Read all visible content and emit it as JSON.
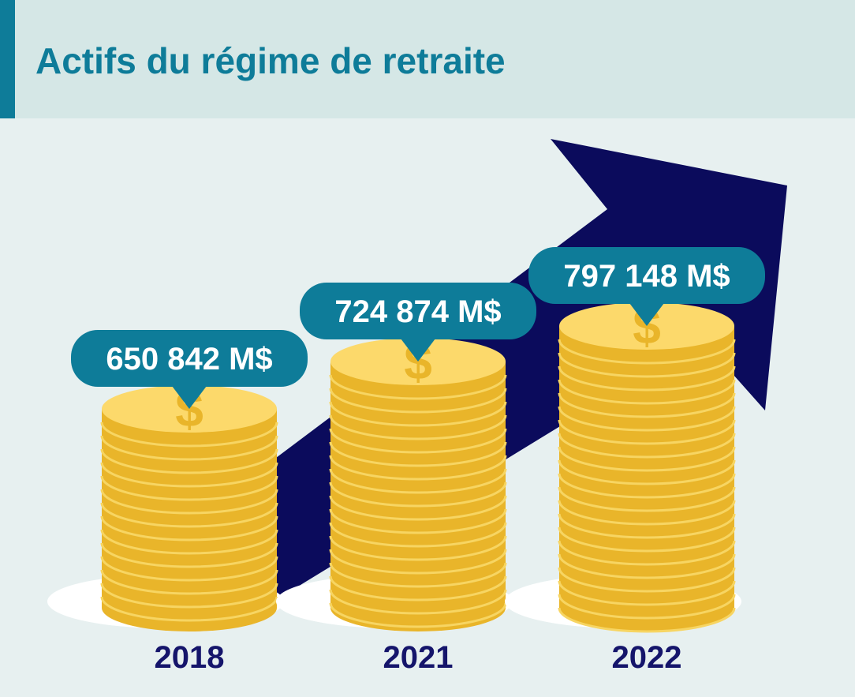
{
  "title": "Actifs du régime de retraite",
  "stacks": [
    {
      "label": "650 842 M$",
      "year": "2018"
    },
    {
      "label": "724 874 M$",
      "year": "2021"
    },
    {
      "label": "797 148 M$",
      "year": "2022"
    }
  ]
}
